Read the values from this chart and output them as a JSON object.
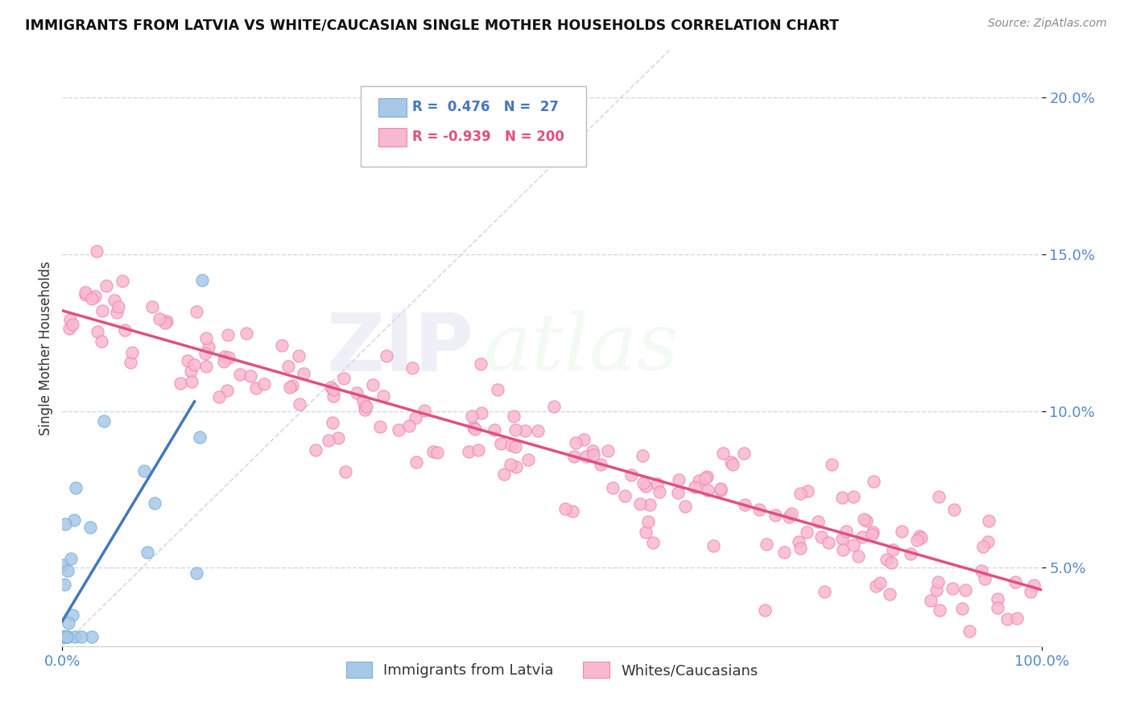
{
  "title": "IMMIGRANTS FROM LATVIA VS WHITE/CAUCASIAN SINGLE MOTHER HOUSEHOLDS CORRELATION CHART",
  "source": "Source: ZipAtlas.com",
  "ylabel": "Single Mother Households",
  "watermark_zip": "ZIP",
  "watermark_atlas": "atlas",
  "legend_blue_r": "0.476",
  "legend_blue_n": "27",
  "legend_pink_r": "-0.939",
  "legend_pink_n": "200",
  "blue_color": "#a8c8e8",
  "blue_scatter_edge": "#7aafd4",
  "blue_line_color": "#4477bb",
  "pink_color": "#f9b8d0",
  "pink_scatter_edge": "#ee88aa",
  "pink_line_color": "#e05080",
  "ref_line_color": "#c8c8d8",
  "background_color": "#ffffff",
  "grid_color": "#c8cce0",
  "tick_label_color": "#5588cc",
  "xlim": [
    0.0,
    1.0
  ],
  "ylim": [
    0.025,
    0.215
  ],
  "yticks": [
    0.05,
    0.1,
    0.15,
    0.2
  ],
  "ytick_labels": [
    "5.0%",
    "10.0%",
    "15.0%",
    "20.0%"
  ],
  "xtick_left_label": "0.0%",
  "xtick_right_label": "100.0%",
  "blue_trend_x0": 0.0,
  "blue_trend_y0": 0.033,
  "blue_trend_x1": 0.135,
  "blue_trend_y1": 0.103,
  "pink_trend_x0": 0.0,
  "pink_trend_y0": 0.132,
  "pink_trend_x1": 1.0,
  "pink_trend_y1": 0.043
}
